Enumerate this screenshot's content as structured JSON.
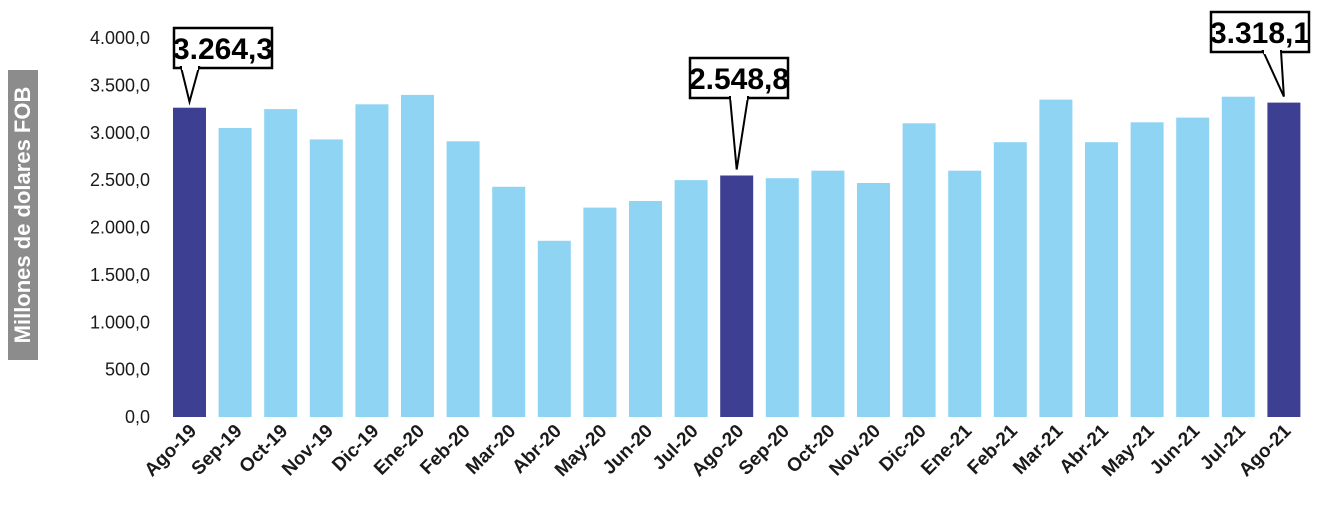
{
  "chart_data": {
    "type": "bar",
    "ylabel": "Millones de dolares  FOB",
    "ylim": [
      0,
      4000
    ],
    "yticks": [
      "0,0",
      "500,0",
      "1.000,0",
      "1.500,0",
      "2.000,0",
      "2.500,0",
      "3.000,0",
      "3.500,0",
      "4.000,0"
    ],
    "categories": [
      "Ago-19",
      "Sep-19",
      "Oct-19",
      "Nov-19",
      "Dic-19",
      "Ene-20",
      "Feb-20",
      "Mar-20",
      "Abr-20",
      "May-20",
      "Jun-20",
      "Jul-20",
      "Ago-20",
      "Sep-20",
      "Oct-20",
      "Nov-20",
      "Dic-20",
      "Ene-21",
      "Feb-21",
      "Mar-21",
      "Abr-21",
      "May-21",
      "Jun-21",
      "Jul-21",
      "Ago-21"
    ],
    "values": [
      3264.3,
      3050,
      3250,
      2930,
      3300,
      3400,
      2910,
      2430,
      1860,
      2210,
      2280,
      2500,
      2548.8,
      2520,
      2600,
      2470,
      3100,
      2600,
      2900,
      3350,
      2900,
      3110,
      3160,
      3380,
      3318.1
    ],
    "highlighted": [
      0,
      12,
      24
    ],
    "callouts": [
      {
        "index": 0,
        "label": "3.264,3"
      },
      {
        "index": 12,
        "label": "2.548,8"
      },
      {
        "index": 24,
        "label": "3.318,1"
      }
    ],
    "colors": {
      "bar": "#8fd4f3",
      "highlight": "#3d3f93"
    },
    "grid": false
  }
}
